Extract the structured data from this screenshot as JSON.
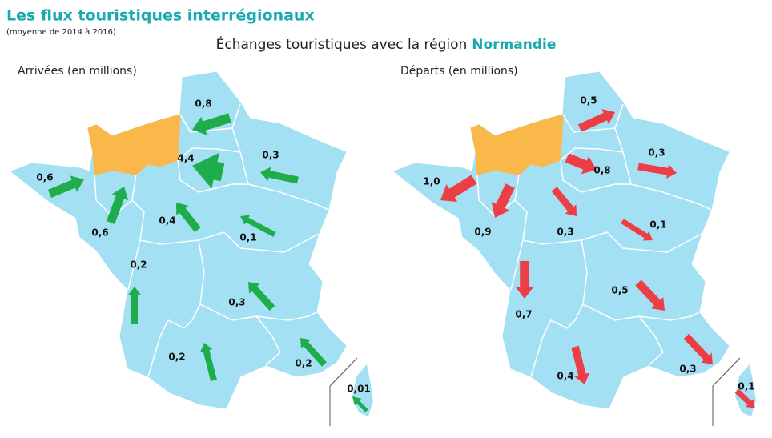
{
  "title": "Les flux touristiques interrégionaux",
  "subtitle": "(moyenne de 2014 à 2016)",
  "heading": "Échanges touristiques avec la région",
  "heading_region": "Normandie",
  "maps": [
    {
      "title": "Arrivées (en millions)",
      "color": "#1fad4b",
      "values": [
        0.8,
        4.4,
        0.3,
        0.6,
        0.6,
        0.4,
        0.1,
        0.2,
        0.3,
        0.2,
        0.2,
        0.01
      ],
      "value_labels": [
        "0,8",
        "4,4",
        "0,3",
        "0,6",
        "0,6",
        "0,4",
        "0,1",
        "0,2",
        "0,3",
        "0,2",
        "0,2",
        "0,01"
      ]
    },
    {
      "title": "Départs (en millions)",
      "color": "#ee3e45",
      "values": [
        0.5,
        0.8,
        0.3,
        1.0,
        0.9,
        0.3,
        0.1,
        0.7,
        0.5,
        0.4,
        0.3,
        0.1
      ],
      "value_labels": [
        "0,5",
        "0,8",
        "0,3",
        "1,0",
        "0,9",
        "0,3",
        "0,1",
        "0,7",
        "0,5",
        "0,4",
        "0,3",
        "0,1"
      ]
    }
  ]
}
